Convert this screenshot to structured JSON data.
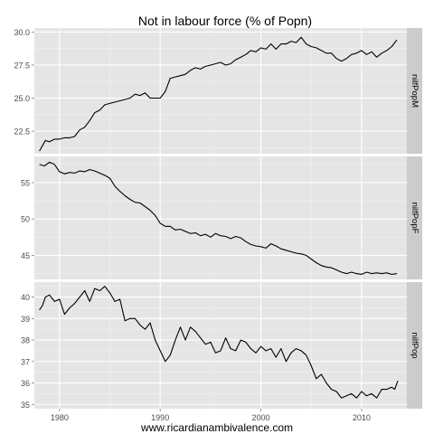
{
  "chart_data": {
    "type": "line",
    "title": "Not in labour force (% of Popn)",
    "xlabel": "www.ricardianambivalence.com",
    "xlim": [
      1977.5,
      2014.5
    ],
    "x_ticks": [
      1980,
      1990,
      2000,
      2010
    ],
    "x_tick_labels": [
      "1980",
      "1990",
      "2000",
      "2010"
    ],
    "grid": true,
    "panels": [
      {
        "strip_label": "nilfPopM",
        "ylim": [
          20.8,
          30.3
        ],
        "y_ticks": [
          22.5,
          25.0,
          27.5,
          30.0
        ],
        "y_tick_labels": [
          "22.5",
          "25.0",
          "27.5",
          "30.0"
        ],
        "x": [
          1978.0,
          1978.3,
          1978.6,
          1979,
          1979.5,
          1980,
          1980.5,
          1981,
          1981.5,
          1982,
          1982.5,
          1983,
          1983.5,
          1984,
          1984.5,
          1985,
          1985.5,
          1986,
          1986.5,
          1987,
          1987.5,
          1988,
          1988.5,
          1989,
          1989.5,
          1990,
          1990.5,
          1991,
          1991.5,
          1992,
          1992.5,
          1993,
          1993.5,
          1994,
          1994.5,
          1995,
          1995.5,
          1996,
          1996.5,
          1997,
          1997.5,
          1998,
          1998.5,
          1999,
          1999.5,
          2000,
          2000.5,
          2001,
          2001.5,
          2002,
          2002.5,
          2003,
          2003.5,
          2004,
          2004.5,
          2005,
          2005.5,
          2006,
          2006.5,
          2007,
          2007.5,
          2008,
          2008.5,
          2009,
          2009.5,
          2010,
          2010.5,
          2011,
          2011.5,
          2012,
          2012.5,
          2013,
          2013.5
        ],
        "values": [
          21.0,
          21.4,
          21.8,
          21.7,
          21.9,
          21.9,
          22.0,
          22.0,
          22.1,
          22.6,
          22.8,
          23.3,
          23.9,
          24.1,
          24.5,
          24.6,
          24.7,
          24.8,
          24.9,
          25.0,
          25.3,
          25.2,
          25.4,
          25.0,
          25.0,
          25.0,
          25.5,
          26.5,
          26.6,
          26.7,
          26.8,
          27.1,
          27.3,
          27.2,
          27.4,
          27.5,
          27.6,
          27.7,
          27.5,
          27.6,
          27.9,
          28.1,
          28.3,
          28.6,
          28.5,
          28.8,
          28.7,
          29.1,
          28.7,
          29.1,
          29.1,
          29.3,
          29.2,
          29.6,
          29.1,
          28.9,
          28.8,
          28.6,
          28.4,
          28.4,
          28.0,
          27.8,
          28.0,
          28.3,
          28.4,
          28.6,
          28.3,
          28.5,
          28.1,
          28.4,
          28.6,
          28.9,
          29.4
        ]
      },
      {
        "strip_label": "nilfPopF",
        "ylim": [
          41.7,
          58.6
        ],
        "y_ticks": [
          45,
          50,
          55
        ],
        "y_tick_labels": [
          "45",
          "50",
          "55"
        ],
        "x": [
          1978.0,
          1978.5,
          1979,
          1979.5,
          1980,
          1980.5,
          1981,
          1981.5,
          1982,
          1982.5,
          1983,
          1983.5,
          1984,
          1984.5,
          1985,
          1985.5,
          1986,
          1986.5,
          1987,
          1987.5,
          1988,
          1988.5,
          1989,
          1989.5,
          1990,
          1990.5,
          1991,
          1991.5,
          1992,
          1992.5,
          1993,
          1993.5,
          1994,
          1994.5,
          1995,
          1995.5,
          1996,
          1996.5,
          1997,
          1997.5,
          1998,
          1998.5,
          1999,
          1999.5,
          2000,
          2000.5,
          2001,
          2001.5,
          2002,
          2002.5,
          2003,
          2003.5,
          2004,
          2004.5,
          2005,
          2005.5,
          2006,
          2006.5,
          2007,
          2007.5,
          2008,
          2008.5,
          2009,
          2009.5,
          2010,
          2010.5,
          2011,
          2011.5,
          2012,
          2012.5,
          2013,
          2013.5
        ],
        "values": [
          57.5,
          57.3,
          57.8,
          57.5,
          56.5,
          56.2,
          56.4,
          56.3,
          56.6,
          56.5,
          56.8,
          56.6,
          56.3,
          56.0,
          55.6,
          54.5,
          53.8,
          53.2,
          52.7,
          52.3,
          52.2,
          51.7,
          51.2,
          50.5,
          49.4,
          49.0,
          49.0,
          48.5,
          48.6,
          48.3,
          48.0,
          48.1,
          47.7,
          47.9,
          47.5,
          48.0,
          47.7,
          47.6,
          47.3,
          47.6,
          47.4,
          46.9,
          46.5,
          46.3,
          46.2,
          46.0,
          46.6,
          46.3,
          45.9,
          45.7,
          45.5,
          45.3,
          45.2,
          45.0,
          44.5,
          44.0,
          43.6,
          43.4,
          43.3,
          43.0,
          42.7,
          42.5,
          42.7,
          42.5,
          42.4,
          42.7,
          42.5,
          42.6,
          42.5,
          42.6,
          42.4,
          42.5
        ]
      },
      {
        "strip_label": "nilfPop",
        "ylim": [
          34.8,
          40.7
        ],
        "y_ticks": [
          35,
          36,
          37,
          38,
          39,
          40
        ],
        "y_tick_labels": [
          "35",
          "36",
          "37",
          "38",
          "39",
          "40"
        ],
        "x": [
          1978.0,
          1978.3,
          1978.6,
          1979,
          1979.5,
          1980,
          1980.5,
          1981,
          1981.5,
          1982,
          1982.5,
          1983,
          1983.5,
          1984,
          1984.5,
          1985,
          1985.5,
          1986,
          1986.5,
          1987,
          1987.5,
          1988,
          1988.5,
          1989,
          1989.5,
          1990,
          1990.5,
          1991,
          1991.5,
          1992,
          1992.5,
          1993,
          1993.5,
          1994,
          1994.5,
          1995,
          1995.5,
          1996,
          1996.5,
          1997,
          1997.5,
          1998,
          1998.5,
          1999,
          1999.5,
          2000,
          2000.5,
          2001,
          2001.5,
          2002,
          2002.5,
          2003,
          2003.5,
          2004,
          2004.5,
          2005,
          2005.5,
          2006,
          2006.5,
          2007,
          2007.5,
          2008,
          2008.5,
          2009,
          2009.5,
          2010,
          2010.5,
          2011,
          2011.5,
          2012,
          2012.5,
          2013,
          2013.3,
          2013.6
        ],
        "values": [
          39.4,
          39.6,
          40.0,
          40.1,
          39.8,
          39.9,
          39.2,
          39.5,
          39.7,
          40.0,
          40.3,
          39.8,
          40.4,
          40.3,
          40.5,
          40.2,
          39.8,
          39.9,
          38.9,
          39.0,
          39.0,
          38.7,
          38.5,
          38.8,
          38.0,
          37.5,
          37.0,
          37.3,
          38.0,
          38.6,
          38.0,
          38.6,
          38.4,
          38.1,
          37.8,
          37.9,
          37.4,
          37.5,
          38.1,
          37.6,
          37.5,
          38.0,
          37.9,
          37.6,
          37.4,
          37.7,
          37.5,
          37.6,
          37.2,
          37.6,
          37.0,
          37.4,
          37.6,
          37.5,
          37.3,
          36.8,
          36.2,
          36.4,
          36.0,
          35.7,
          35.6,
          35.3,
          35.4,
          35.5,
          35.3,
          35.6,
          35.4,
          35.5,
          35.3,
          35.7,
          35.7,
          35.8,
          35.7,
          36.1
        ]
      }
    ]
  }
}
